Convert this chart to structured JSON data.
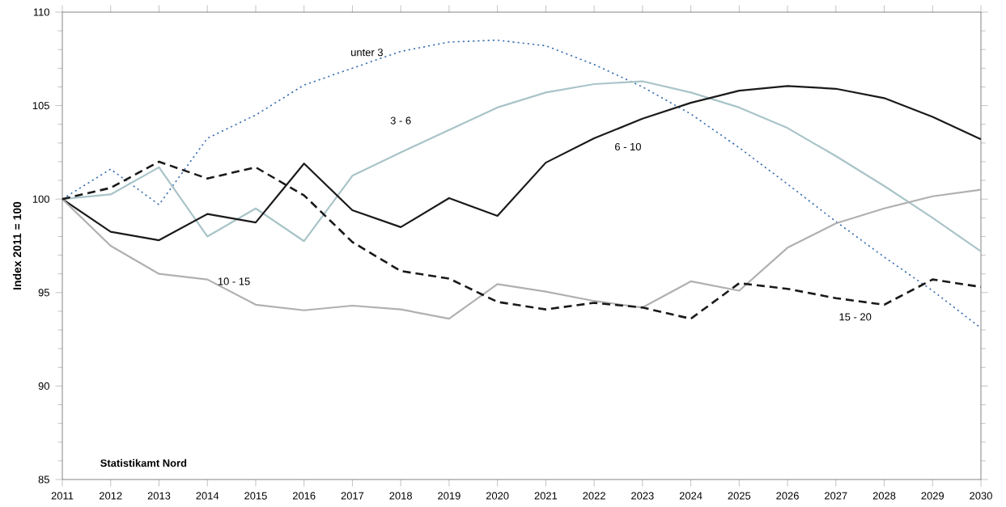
{
  "chart_data": {
    "type": "line",
    "ylabel": "Index 2011 = 100",
    "x": [
      2011,
      2012,
      2013,
      2014,
      2015,
      2016,
      2017,
      2018,
      2019,
      2020,
      2021,
      2022,
      2023,
      2024,
      2025,
      2026,
      2027,
      2028,
      2029,
      2030
    ],
    "series": [
      {
        "name": "unter 3",
        "color": "#3a6fb0",
        "line_style": "dotted",
        "values": [
          100,
          101.6,
          99.7,
          103.25,
          104.5,
          106.1,
          107.0,
          107.9,
          108.4,
          108.5,
          108.2,
          107.2,
          106.0,
          104.55,
          102.75,
          100.8,
          98.8,
          96.9,
          95.1,
          93.1
        ]
      },
      {
        "name": "3 - 6",
        "color": "#a9c4c8",
        "line_style": "solid",
        "values": [
          100,
          100.25,
          101.7,
          98.0,
          99.5,
          97.75,
          101.25,
          102.5,
          103.7,
          104.9,
          105.7,
          106.15,
          106.3,
          105.7,
          104.9,
          103.8,
          102.3,
          100.7,
          99.0,
          97.2
        ]
      },
      {
        "name": "6 - 10",
        "color": "#1a1a1a",
        "line_style": "solid",
        "values": [
          100,
          98.25,
          97.8,
          99.2,
          98.75,
          101.9,
          99.4,
          98.5,
          100.05,
          99.1,
          101.95,
          103.25,
          104.3,
          105.15,
          105.8,
          106.05,
          105.9,
          105.4,
          104.4,
          103.2
        ]
      },
      {
        "name": "10 - 15",
        "color": "#b0b0b0",
        "line_style": "solid",
        "values": [
          100,
          97.5,
          96.0,
          95.7,
          94.35,
          94.05,
          94.3,
          94.1,
          93.6,
          95.45,
          95.05,
          94.55,
          94.2,
          95.6,
          95.1,
          97.4,
          98.7,
          99.5,
          100.15,
          100.5
        ]
      },
      {
        "name": "15 - 20",
        "color": "#1a1a1a",
        "line_style": "dashed",
        "values": [
          100,
          100.6,
          102.0,
          101.1,
          101.7,
          100.2,
          97.7,
          96.15,
          95.75,
          94.5,
          94.1,
          94.45,
          94.2,
          93.6,
          95.5,
          95.2,
          94.7,
          94.35,
          95.7,
          95.3
        ]
      }
    ],
    "xlim": [
      2011,
      2030
    ],
    "ylim": [
      85,
      110
    ],
    "xticks": [
      2011,
      2012,
      2013,
      2014,
      2015,
      2016,
      2017,
      2018,
      2019,
      2020,
      2021,
      2022,
      2023,
      2024,
      2025,
      2026,
      2027,
      2028,
      2029,
      2030
    ],
    "yticks": [
      85,
      90,
      95,
      100,
      105,
      110
    ],
    "grid": false,
    "legend": false,
    "annotations": [
      "Statistikamt Nord"
    ]
  }
}
